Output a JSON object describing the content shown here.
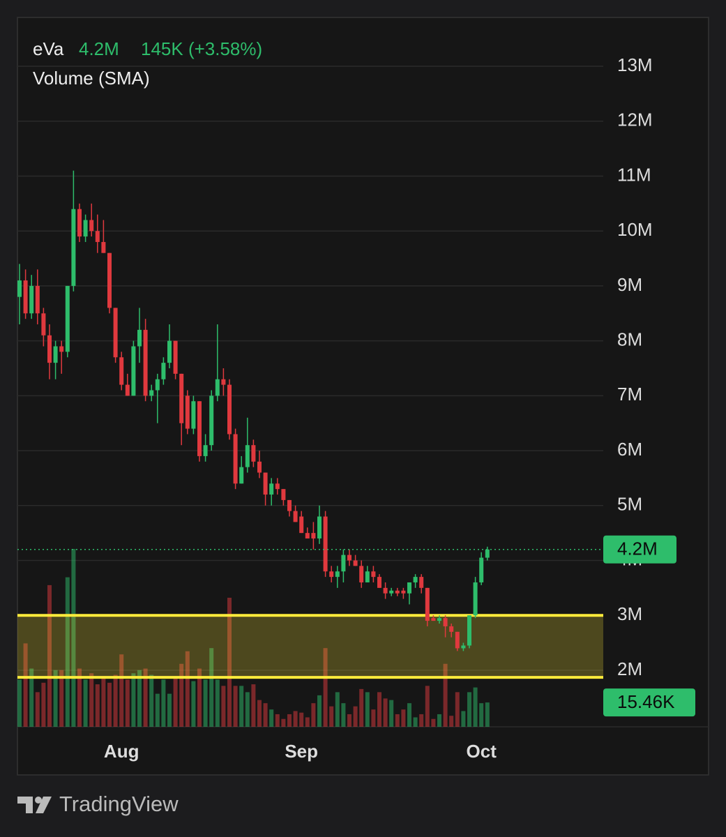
{
  "brand": "TradingView",
  "chart_data": {
    "type": "candlestick",
    "header": {
      "symbol": "eVa",
      "price": "4.2M",
      "change": "145K (+3.58%)",
      "indicator": "Volume (SMA)"
    },
    "categories": [
      null,
      null,
      null,
      null,
      null,
      null,
      null,
      null,
      null,
      null,
      null,
      null,
      null,
      null,
      null,
      null,
      null,
      "Aug",
      null,
      null,
      null,
      null,
      null,
      null,
      null,
      null,
      null,
      null,
      null,
      null,
      null,
      null,
      null,
      null,
      null,
      null,
      null,
      null,
      null,
      null,
      null,
      null,
      null,
      null,
      null,
      null,
      null,
      "Sep",
      null,
      null,
      null,
      null,
      null,
      null,
      null,
      null,
      null,
      null,
      null,
      null,
      null,
      null,
      null,
      null,
      null,
      null,
      null,
      null,
      null,
      null,
      null,
      null,
      null,
      null,
      null,
      null,
      null,
      "Oct",
      null
    ],
    "open": [
      8800000,
      9100000,
      8500000,
      9000000,
      8500000,
      8100000,
      7600000,
      7900000,
      7800000,
      9000000,
      10400000,
      9900000,
      10200000,
      10000000,
      9800000,
      9600000,
      8600000,
      7700000,
      7200000,
      7000000,
      7900000,
      8200000,
      7000000,
      7100000,
      7300000,
      7600000,
      8000000,
      7400000,
      7000000,
      6400000,
      6900000,
      5900000,
      6100000,
      7000000,
      7300000,
      7200000,
      6300000,
      5400000,
      5700000,
      6100000,
      5800000,
      5600000,
      5200000,
      5400000,
      5300000,
      5100000,
      4900000,
      4800000,
      4500000,
      4500000,
      4400000,
      4800000,
      3800000,
      3700000,
      3800000,
      4100000,
      4000000,
      3900000,
      3600000,
      3800000,
      3700000,
      3500000,
      3400000,
      3450000,
      3450000,
      3400000,
      3600000,
      3700000,
      3500000,
      2950000,
      2900000,
      2950000,
      2800000,
      2700000,
      2400000,
      2450000,
      3000000,
      3600000,
      4050000
    ],
    "high": [
      9400000,
      9300000,
      9200000,
      9300000,
      8600000,
      8300000,
      8000000,
      8000000,
      9000000,
      11100000,
      10500000,
      10300000,
      10500000,
      10300000,
      10200000,
      9600000,
      8600000,
      7800000,
      7400000,
      8000000,
      8600000,
      8400000,
      7200000,
      7400000,
      7700000,
      8300000,
      8000000,
      7400000,
      7100000,
      7000000,
      6900000,
      6300000,
      7100000,
      8300000,
      7500000,
      7300000,
      6400000,
      5900000,
      6600000,
      6200000,
      6000000,
      5600000,
      5500000,
      5500000,
      5300000,
      5100000,
      5000000,
      4900000,
      4600000,
      4700000,
      5000000,
      4900000,
      3900000,
      3900000,
      4200000,
      4200000,
      4100000,
      4000000,
      3900000,
      3900000,
      3750000,
      3600000,
      3500000,
      3500000,
      3500000,
      3600000,
      3750000,
      3750000,
      3500000,
      3000000,
      3000000,
      3000000,
      2850000,
      2700000,
      2500000,
      3000000,
      3700000,
      4150000,
      4250000
    ],
    "low": [
      8300000,
      8400000,
      8400000,
      8300000,
      7900000,
      7300000,
      7300000,
      7400000,
      7700000,
      8900000,
      9800000,
      9800000,
      9900000,
      9600000,
      9600000,
      8500000,
      7600000,
      7100000,
      7000000,
      7000000,
      7600000,
      6900000,
      6900000,
      6500000,
      7200000,
      7500000,
      7300000,
      6100000,
      6300000,
      6300000,
      5800000,
      5800000,
      6000000,
      6900000,
      7000000,
      6200000,
      5300000,
      5400000,
      5600000,
      5700000,
      5500000,
      5000000,
      5000000,
      5200000,
      5000000,
      4800000,
      4700000,
      4500000,
      4400000,
      4200000,
      4300000,
      3700000,
      3600000,
      3500000,
      3600000,
      3900000,
      3900000,
      3500000,
      3600000,
      3600000,
      3500000,
      3300000,
      3350000,
      3350000,
      3300000,
      3200000,
      3500000,
      3400000,
      2800000,
      2900000,
      2850000,
      2600000,
      2600000,
      2350000,
      2350000,
      2400000,
      2950000,
      3550000,
      4000000
    ],
    "close": [
      9100000,
      8500000,
      9000000,
      8500000,
      8100000,
      7600000,
      7900000,
      7800000,
      9000000,
      10400000,
      9900000,
      10200000,
      10000000,
      9800000,
      9600000,
      8600000,
      7700000,
      7200000,
      7000000,
      7900000,
      8200000,
      7000000,
      7100000,
      7300000,
      7600000,
      8000000,
      7400000,
      6500000,
      6400000,
      6900000,
      5900000,
      6100000,
      7000000,
      7300000,
      7200000,
      6300000,
      5400000,
      5700000,
      6100000,
      5800000,
      5600000,
      5200000,
      5400000,
      5300000,
      5100000,
      4900000,
      4700000,
      4500000,
      4400000,
      4400000,
      4800000,
      3800000,
      3700000,
      3800000,
      4100000,
      4000000,
      3900000,
      3600000,
      3800000,
      3700000,
      3500000,
      3400000,
      3450000,
      3400000,
      3400000,
      3600000,
      3700000,
      3500000,
      2900000,
      2900000,
      2950000,
      2800000,
      2700000,
      2400000,
      2450000,
      3000000,
      3600000,
      4050000,
      4200000
    ],
    "volumes": [
      30000,
      53000,
      37000,
      22000,
      28000,
      90000,
      36000,
      36000,
      95000,
      113000,
      37000,
      30000,
      34000,
      27000,
      32000,
      28000,
      33000,
      46000,
      30000,
      34000,
      36000,
      37000,
      33000,
      21000,
      30000,
      21000,
      31000,
      40000,
      48000,
      29000,
      37000,
      30000,
      50000,
      30000,
      26000,
      82000,
      26000,
      26000,
      22000,
      27000,
      17000,
      15000,
      11000,
      8000,
      5000,
      8000,
      10000,
      9000,
      6000,
      15000,
      20000,
      50000,
      13000,
      22000,
      15000,
      8000,
      13000,
      24000,
      22000,
      11000,
      22000,
      18000,
      17000,
      8000,
      11000,
      15000,
      6000,
      8000,
      26000,
      5000,
      8000,
      40000,
      7000,
      22000,
      10000,
      22000,
      25000,
      15000,
      15460
    ],
    "last_volume_label": "15.46K",
    "up_color": "#2ebd6b",
    "down_color": "#e0393e",
    "ylim": [
      970000,
      13890000
    ],
    "yticks": [
      {
        "value": 2000000,
        "label": "2M"
      },
      {
        "value": 3000000,
        "label": "3M"
      },
      {
        "value": 4000000,
        "label": "4M"
      },
      {
        "value": 5000000,
        "label": "5M"
      },
      {
        "value": 6000000,
        "label": "6M"
      },
      {
        "value": 7000000,
        "label": "7M"
      },
      {
        "value": 8000000,
        "label": "8M"
      },
      {
        "value": 9000000,
        "label": "9M"
      },
      {
        "value": 10000000,
        "label": "10M"
      },
      {
        "value": 11000000,
        "label": "11M"
      },
      {
        "value": 12000000,
        "label": "12M"
      },
      {
        "value": 13000000,
        "label": "13M"
      }
    ],
    "grid": true,
    "zones": [
      {
        "from": 1870000,
        "to": 3000000,
        "color": "#ffeb3b"
      }
    ]
  }
}
